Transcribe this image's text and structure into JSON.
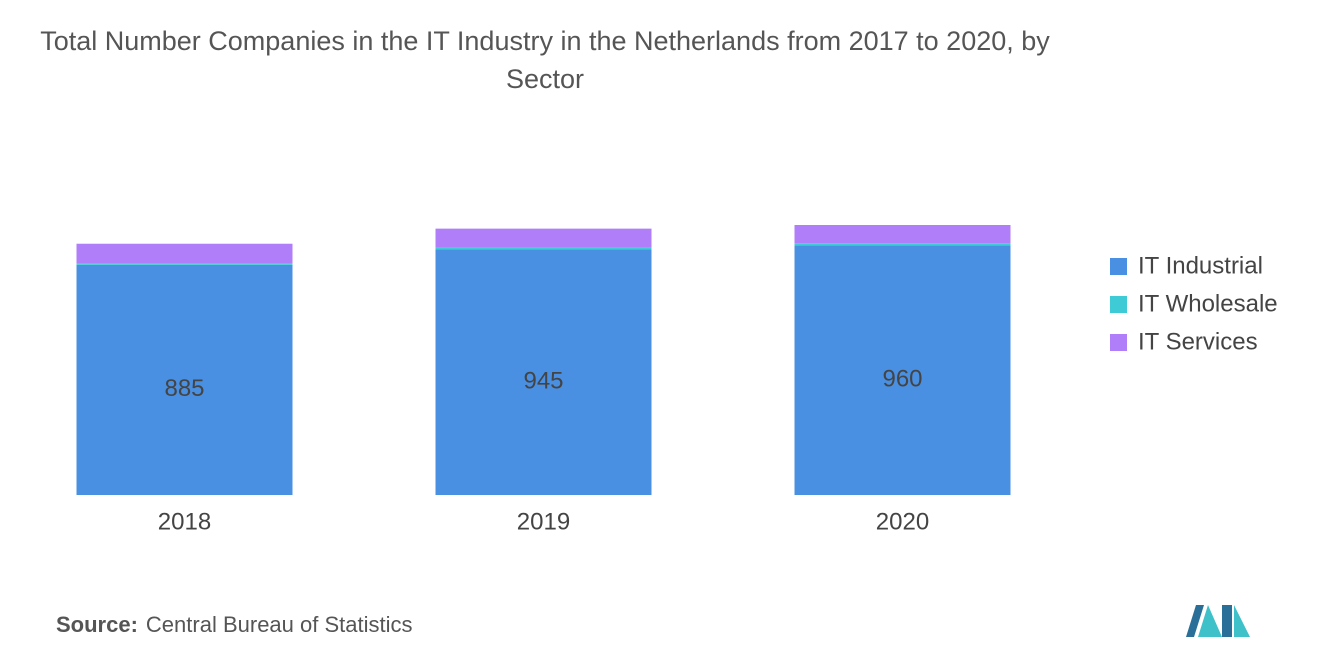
{
  "chart_data": {
    "type": "stacked_bar",
    "title": "Total Number Companies in the IT Industry in the Netherlands from 2017 to 2020, by Sector",
    "categories": [
      "2018",
      "2019",
      "2020"
    ],
    "series": [
      {
        "name": "IT Industrial",
        "color": "#4a90e2",
        "values": [
          885,
          945,
          960
        ]
      },
      {
        "name": "IT Wholesale",
        "color": "#3ecbd6",
        "values": [
          4,
          6,
          8
        ]
      },
      {
        "name": "IT Services",
        "color": "#b07ef8",
        "values": [
          77,
          73,
          70
        ]
      }
    ],
    "source_label": "Source:",
    "source": "Central Bureau of Statistics"
  }
}
